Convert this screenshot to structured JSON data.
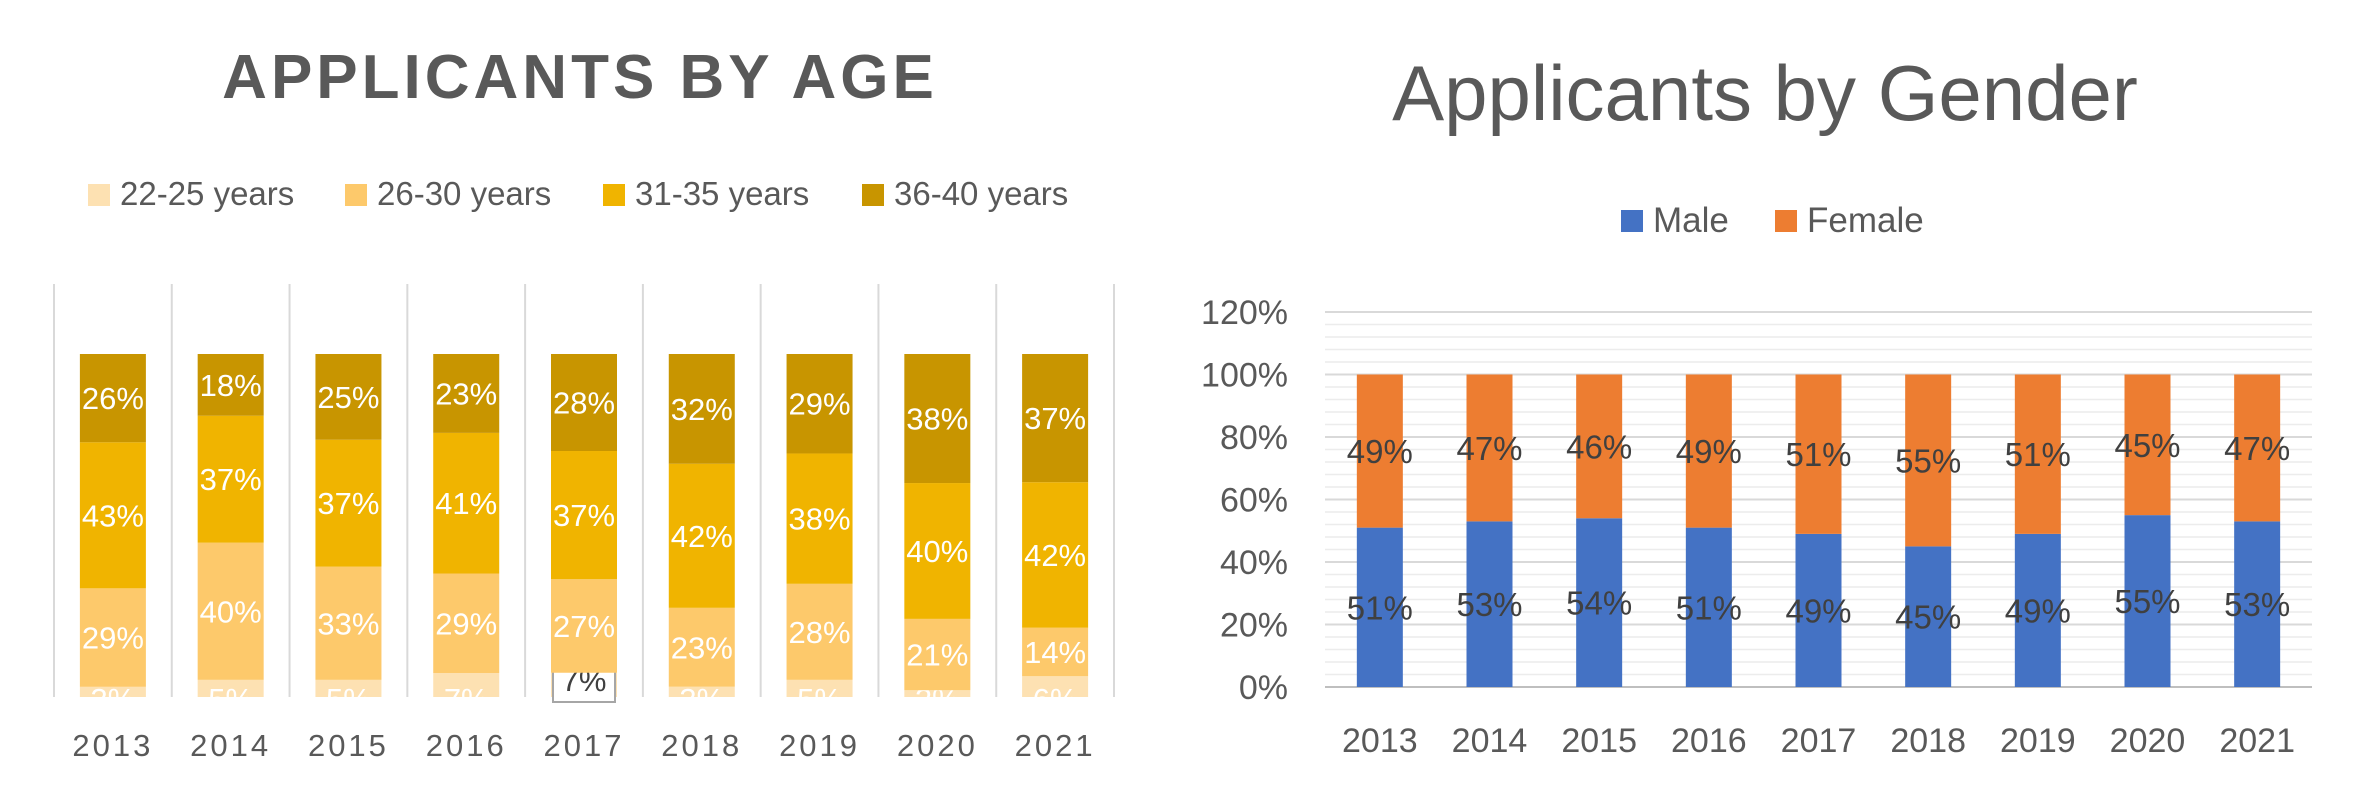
{
  "chart_data": [
    {
      "type": "bar",
      "stacked": true,
      "title": "APPLICANTS BY AGE",
      "categories": [
        "2013",
        "2014",
        "2015",
        "2016",
        "2017",
        "2018",
        "2019",
        "2020",
        "2021"
      ],
      "series": [
        {
          "name": "22-25 years",
          "color": "#fde1b2",
          "values": [
            3,
            5,
            5,
            7,
            7,
            3,
            5,
            2,
            6
          ],
          "labels": [
            "3%",
            "5%",
            "5%",
            "7%",
            "7%",
            "3%",
            "5%",
            "2%",
            "6%"
          ]
        },
        {
          "name": "26-30 years",
          "color": "#fdc96b",
          "values": [
            29,
            40,
            33,
            29,
            27,
            23,
            28,
            21,
            14
          ],
          "labels": [
            "29%",
            "40%",
            "33%",
            "29%",
            "27%",
            "23%",
            "28%",
            "21%",
            "14%"
          ]
        },
        {
          "name": "31-35 years",
          "color": "#f0b400",
          "values": [
            43,
            37,
            37,
            41,
            37,
            42,
            38,
            40,
            42
          ],
          "labels": [
            "43%",
            "37%",
            "37%",
            "41%",
            "37%",
            "42%",
            "38%",
            "40%",
            "42%"
          ]
        },
        {
          "name": "36-40 years",
          "color": "#c89500",
          "values": [
            26,
            18,
            25,
            23,
            28,
            32,
            29,
            38,
            37
          ],
          "labels": [
            "26%",
            "18%",
            "25%",
            "23%",
            "28%",
            "32%",
            "29%",
            "38%",
            "37%"
          ]
        }
      ],
      "legend_position": "top",
      "grid": "vertical"
    },
    {
      "type": "bar",
      "stacked": true,
      "title": "Applicants by Gender",
      "categories": [
        "2013",
        "2014",
        "2015",
        "2016",
        "2017",
        "2018",
        "2019",
        "2020",
        "2021"
      ],
      "series": [
        {
          "name": "Male",
          "color": "#4472c4",
          "values": [
            51,
            53,
            54,
            51,
            49,
            45,
            49,
            55,
            53
          ],
          "labels": [
            "51%",
            "53%",
            "54%",
            "51%",
            "49%",
            "45%",
            "49%",
            "55%",
            "53%"
          ]
        },
        {
          "name": "Female",
          "color": "#ed7d31",
          "values": [
            49,
            47,
            46,
            49,
            51,
            55,
            51,
            45,
            47
          ],
          "labels": [
            "49%",
            "47%",
            "46%",
            "49%",
            "51%",
            "55%",
            "51%",
            "45%",
            "47%"
          ]
        }
      ],
      "y_ticks": [
        "0%",
        "20%",
        "40%",
        "60%",
        "80%",
        "100%",
        "120%"
      ],
      "ylim": [
        0,
        120
      ],
      "legend_position": "top",
      "grid": "horizontal"
    }
  ]
}
